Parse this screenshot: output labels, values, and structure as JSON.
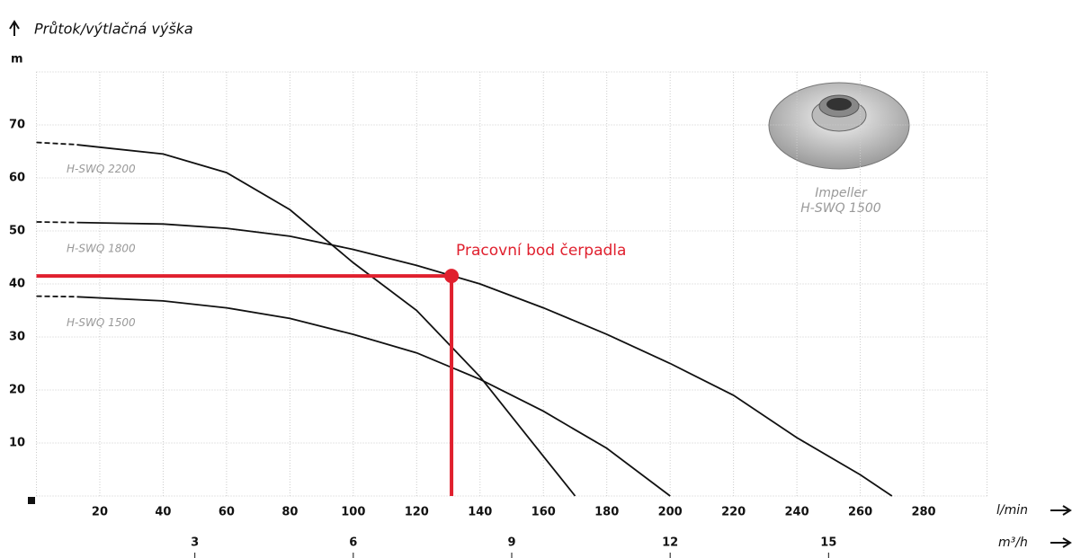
{
  "chart_data": {
    "type": "line",
    "title": "Průtok/výtlačná výška",
    "y_unit": "m",
    "x_unit": "l/min",
    "x2_unit": "m³/h",
    "x": [
      0,
      12,
      40,
      60,
      80,
      100,
      120,
      140,
      160,
      170,
      180,
      200,
      220,
      240,
      260,
      270
    ],
    "series": [
      {
        "name": "H-SWQ 2200",
        "color": "#111111",
        "values": [
          66.7,
          66.3,
          64.5,
          61,
          54,
          44,
          35,
          22.5,
          7.5,
          0,
          null,
          null,
          null,
          null,
          null,
          null
        ]
      },
      {
        "name": "H-SWQ 1800",
        "color": "#111111",
        "values": [
          51.7,
          51.6,
          51.3,
          50.5,
          49,
          46.5,
          43.5,
          40,
          35.5,
          33,
          30.5,
          25,
          19,
          11,
          4,
          0
        ]
      },
      {
        "name": "H-SWQ 1500",
        "color": "#111111",
        "values": [
          37.7,
          37.6,
          36.8,
          35.5,
          33.5,
          30.5,
          27,
          22,
          16,
          12.5,
          9,
          0,
          null,
          null,
          null,
          null
        ]
      }
    ],
    "xlim": [
      0,
      300
    ],
    "xticks": [
      20,
      40,
      60,
      80,
      100,
      120,
      140,
      160,
      180,
      200,
      220,
      240,
      260,
      280
    ],
    "x2lim": [
      0,
      18
    ],
    "x2ticks": [
      3,
      6,
      9,
      12,
      15
    ],
    "ylim": [
      0,
      80
    ],
    "yticks": [
      10,
      20,
      30,
      40,
      50,
      60,
      70
    ],
    "grid": true,
    "operating_point": {
      "label": "Pracovní bod čerpadla",
      "x": 131,
      "y": 41.5,
      "color": "#e0202e"
    },
    "impeller": {
      "title": "Impeller",
      "model": "H-SWQ 1500"
    }
  }
}
